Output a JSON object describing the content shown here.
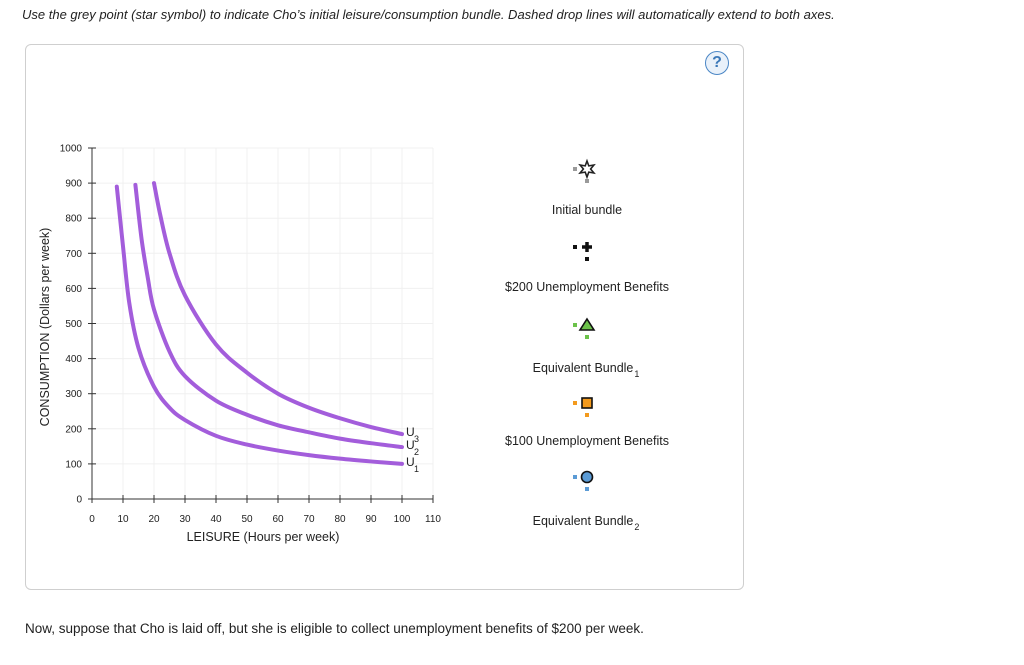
{
  "instruction": "Use the grey point (star symbol) to indicate Cho’s initial leisure/consumption bundle. Dashed drop lines will automatically extend to both axes.",
  "help_label": "?",
  "chart_data": {
    "type": "line",
    "xlabel": "LEISURE (Hours per week)",
    "ylabel": "CONSUMPTION (Dollars per week)",
    "xlim": [
      0,
      110
    ],
    "ylim": [
      0,
      1000
    ],
    "x_ticks": [
      0,
      10,
      20,
      30,
      40,
      50,
      60,
      70,
      80,
      90,
      100,
      110
    ],
    "y_ticks": [
      0,
      100,
      200,
      300,
      400,
      500,
      600,
      700,
      800,
      900,
      1000
    ],
    "grid": true,
    "curve_color": "#a35ddb",
    "series": [
      {
        "name": "U",
        "sub": "1",
        "x": [
          8,
          10,
          12,
          15,
          20,
          25,
          30,
          40,
          50,
          60,
          70,
          80,
          90,
          100
        ],
        "y": [
          890,
          720,
          560,
          430,
          320,
          260,
          225,
          180,
          155,
          138,
          125,
          115,
          107,
          100
        ]
      },
      {
        "name": "U",
        "sub": "2",
        "x": [
          14,
          16,
          18,
          20,
          25,
          30,
          40,
          50,
          60,
          70,
          80,
          90,
          100
        ],
        "y": [
          895,
          740,
          630,
          540,
          420,
          350,
          280,
          240,
          210,
          190,
          172,
          159,
          148
        ]
      },
      {
        "name": "U",
        "sub": "3",
        "x": [
          20,
          22,
          25,
          30,
          40,
          50,
          60,
          70,
          80,
          90,
          100
        ],
        "y": [
          900,
          810,
          700,
          580,
          440,
          360,
          300,
          260,
          230,
          205,
          185
        ]
      }
    ]
  },
  "legend": [
    {
      "label": "Initial bundle",
      "sub": "",
      "icon": "star-icon",
      "color": "#9a9a9a"
    },
    {
      "label": "$200 Unemployment Benefits",
      "sub": "",
      "icon": "plus-icon",
      "color": "#111111"
    },
    {
      "label": "Equivalent Bundle",
      "sub": "1",
      "icon": "triangle-icon",
      "color": "#6cc24a"
    },
    {
      "label": "$100 Unemployment Benefits",
      "sub": "",
      "icon": "square-icon",
      "color": "#f39a1d"
    },
    {
      "label": "Equivalent Bundle",
      "sub": "2",
      "icon": "circle-icon",
      "color": "#5b9bd5"
    }
  ],
  "bottom_text": "Now, suppose that Cho is laid off, but she is eligible to collect unemployment benefits of $200 per week."
}
